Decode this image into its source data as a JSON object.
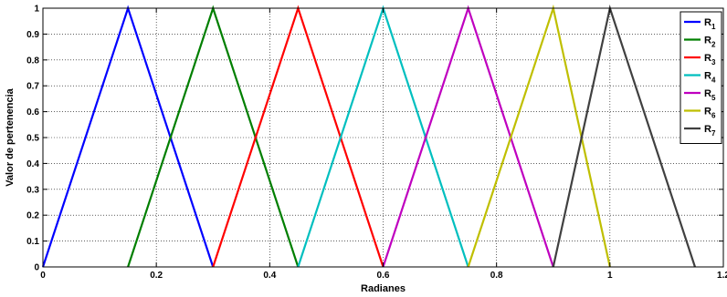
{
  "chart_data": {
    "type": "line",
    "xlabel": "Radianes",
    "ylabel": "Valor de pertenencia",
    "xlim": [
      0,
      1.2
    ],
    "ylim": [
      0,
      1
    ],
    "xticks": [
      "0",
      "0.2",
      "0.4",
      "0.6",
      "0.8",
      "1",
      "1.2"
    ],
    "yticks": [
      "0",
      "0.1",
      "0.2",
      "0.3",
      "0.4",
      "0.5",
      "0.6",
      "0.7",
      "0.8",
      "0.9",
      "1"
    ],
    "grid": true,
    "legend_position": "top-right",
    "series": [
      {
        "name": "R",
        "sub": "1",
        "color": "#0000ff",
        "x": [
          0,
          0.15,
          0.3
        ],
        "y": [
          0,
          1,
          0
        ]
      },
      {
        "name": "R",
        "sub": "2",
        "color": "#007f00",
        "x": [
          0.15,
          0.3,
          0.45
        ],
        "y": [
          0,
          1,
          0
        ]
      },
      {
        "name": "R",
        "sub": "3",
        "color": "#ff0000",
        "x": [
          0.3,
          0.45,
          0.6
        ],
        "y": [
          0,
          1,
          0
        ]
      },
      {
        "name": "R",
        "sub": "4",
        "color": "#00bfbf",
        "x": [
          0.45,
          0.6,
          0.75
        ],
        "y": [
          0,
          1,
          0
        ]
      },
      {
        "name": "R",
        "sub": "5",
        "color": "#bf00bf",
        "x": [
          0.6,
          0.75,
          0.9
        ],
        "y": [
          0,
          1,
          0
        ]
      },
      {
        "name": "R",
        "sub": "6",
        "color": "#bfbf00",
        "x": [
          0.75,
          0.9,
          1.0
        ],
        "y": [
          0,
          1,
          0
        ]
      },
      {
        "name": "R",
        "sub": "7",
        "color": "#404040",
        "x": [
          0.9,
          1.0,
          1.15
        ],
        "y": [
          0,
          1,
          0
        ]
      }
    ]
  }
}
